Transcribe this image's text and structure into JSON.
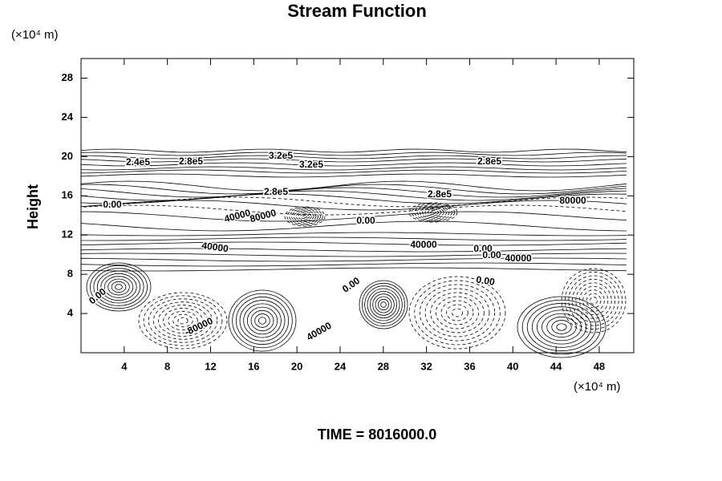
{
  "chart_data": {
    "type": "contour",
    "title": "Stream Function",
    "y_unit": "(×10⁴ m)",
    "x_unit": "(×10⁴ m)",
    "ylabel": "Height",
    "footer": "TIME = 8016000.0",
    "xlim": [
      0,
      51.2
    ],
    "ylim": [
      0,
      30
    ],
    "xticks": [
      4,
      8,
      12,
      16,
      20,
      24,
      28,
      32,
      36,
      40,
      44,
      48
    ],
    "yticks": [
      4,
      8,
      12,
      16,
      20,
      24,
      28
    ],
    "contour_labels": [
      "2.4e5",
      "2.8e5",
      "3.2e5",
      "3.2e5",
      "2.8e5",
      "2.8e5",
      "2.8e5",
      "0.00",
      "40000",
      "80000",
      "0.00",
      "80000",
      "40000",
      "40000",
      "0.00",
      "0.00",
      "40000",
      "0.00",
      "0.00",
      "0.00",
      "-80000",
      "40000"
    ]
  }
}
